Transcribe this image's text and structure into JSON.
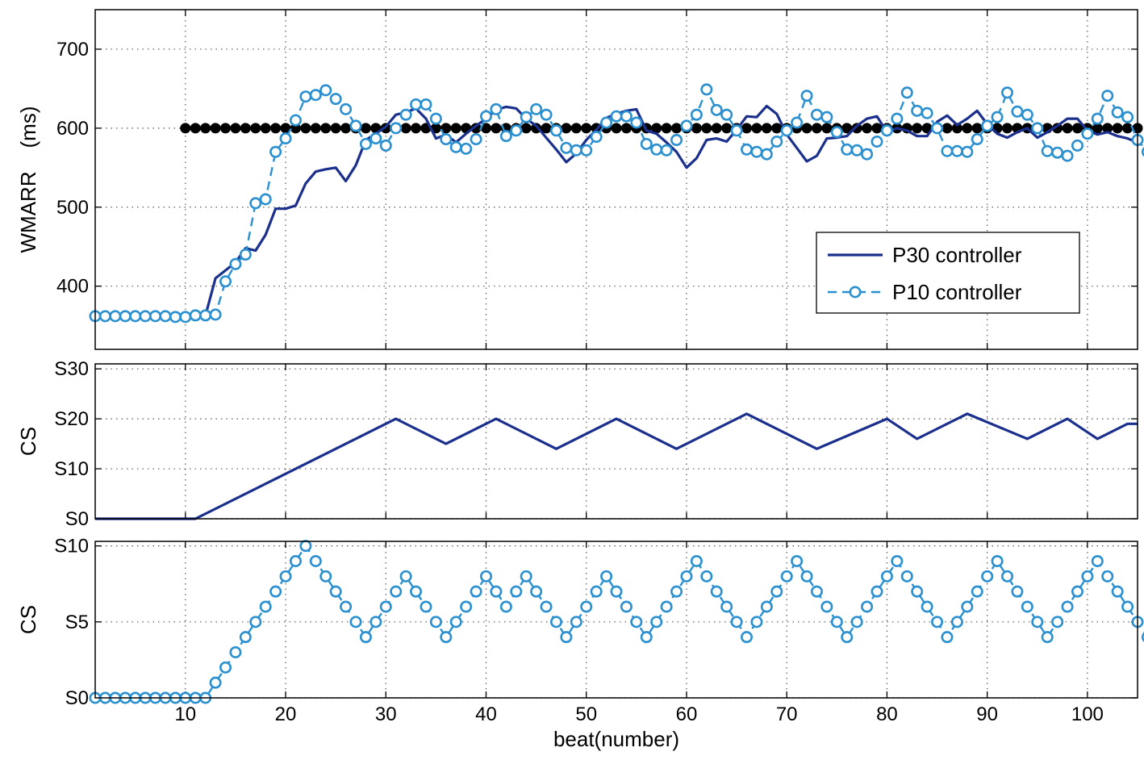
{
  "colors": {
    "p30": "#1b2f8c",
    "p10": "#2b90d0",
    "target": "#000000",
    "grid": "#555555"
  },
  "chart_data": [
    {
      "type": "line",
      "ylabel": "WMARR    (ms)",
      "xlim": [
        1,
        105
      ],
      "ylim": [
        320,
        750
      ],
      "grid": true,
      "legend_position": "middle-right",
      "xticks": [
        10,
        20,
        30,
        40,
        50,
        60,
        70,
        80,
        90,
        100
      ],
      "yticks": [
        {
          "value": 400,
          "label": "400"
        },
        {
          "value": 500,
          "label": "500"
        },
        {
          "value": 600,
          "label": "600"
        },
        {
          "value": 700,
          "label": "700"
        }
      ],
      "target": {
        "x_start": 10,
        "x_end": 105,
        "value": 600
      },
      "series": [
        {
          "name": "P30 controller",
          "style": "solid",
          "x_start": 1,
          "values": [
            363,
            363,
            363,
            363,
            363,
            363,
            363,
            363,
            363,
            363,
            363,
            363,
            410,
            420,
            430,
            448,
            445,
            465,
            498,
            498,
            502,
            530,
            545,
            548,
            550,
            533,
            553,
            585,
            593,
            602,
            617,
            620,
            625,
            612,
            587,
            592,
            582,
            593,
            603,
            612,
            623,
            627,
            625,
            612,
            603,
            588,
            573,
            557,
            568,
            585,
            598,
            613,
            618,
            622,
            624,
            597,
            593,
            582,
            570,
            550,
            562,
            585,
            587,
            583,
            598,
            615,
            614,
            628,
            618,
            592,
            575,
            558,
            565,
            587,
            588,
            590,
            603,
            612,
            615,
            595,
            600,
            597,
            590,
            590,
            608,
            616,
            604,
            612,
            622,
            605,
            593,
            588,
            595,
            600,
            588,
            595,
            603,
            612,
            612,
            597,
            592,
            595,
            590,
            587,
            582
          ]
        },
        {
          "name": "P10 controller",
          "style": "dashed-circle",
          "x_start": 1,
          "values": [
            362,
            362,
            362,
            362,
            362,
            362,
            362,
            362,
            361,
            361,
            363,
            363,
            364,
            406,
            428,
            440,
            505,
            510,
            570,
            587,
            610,
            640,
            642,
            648,
            637,
            624,
            603,
            580,
            587,
            578,
            600,
            617,
            630,
            630,
            612,
            586,
            576,
            574,
            586,
            615,
            624,
            590,
            597,
            614,
            624,
            617,
            597,
            575,
            572,
            572,
            589,
            607,
            615,
            615,
            607,
            580,
            573,
            572,
            585,
            603,
            617,
            649,
            623,
            617,
            597,
            573,
            570,
            567,
            583,
            597,
            607,
            641,
            617,
            614,
            595,
            573,
            572,
            567,
            583,
            597,
            612,
            645,
            622,
            619,
            600,
            571,
            571,
            570,
            586,
            603,
            614,
            645,
            621,
            617,
            600,
            571,
            569,
            565,
            578,
            593,
            612,
            641,
            620,
            614,
            585,
            570
          ]
        }
      ]
    },
    {
      "type": "line",
      "ylabel": "CS",
      "xlim": [
        1,
        105
      ],
      "ylim": [
        0,
        31
      ],
      "grid": true,
      "xticks": [
        10,
        20,
        30,
        40,
        50,
        60,
        70,
        80,
        90,
        100
      ],
      "yticks": [
        {
          "value": 0,
          "label": "S0"
        },
        {
          "value": 10,
          "label": "S10"
        },
        {
          "value": 20,
          "label": "S20"
        },
        {
          "value": 30,
          "label": "S30"
        }
      ],
      "series": [
        {
          "name": "P30 controller",
          "style": "solid",
          "x": [
            1,
            11,
            31,
            36,
            41,
            47,
            53,
            59,
            66,
            73,
            80,
            83,
            88,
            94,
            98,
            101,
            104,
            105
          ],
          "values": [
            0,
            0,
            20,
            15,
            20,
            14,
            20,
            14,
            21,
            14,
            20,
            16,
            21,
            16,
            20,
            16,
            19,
            19
          ]
        }
      ]
    },
    {
      "type": "line",
      "ylabel": "CS",
      "xlabel": "beat(number)",
      "xlim": [
        1,
        105
      ],
      "ylim": [
        0,
        10.3
      ],
      "grid": true,
      "xticks": [
        10,
        20,
        30,
        40,
        50,
        60,
        70,
        80,
        90,
        100
      ],
      "yticks": [
        {
          "value": 0,
          "label": "S0"
        },
        {
          "value": 5,
          "label": "S5"
        },
        {
          "value": 10,
          "label": "S10"
        }
      ],
      "series": [
        {
          "name": "P10 controller",
          "style": "dashed-circle",
          "x_start": 1,
          "values": [
            0,
            0,
            0,
            0,
            0,
            0,
            0,
            0,
            0,
            0,
            0,
            0,
            1,
            2,
            3,
            4,
            5,
            6,
            7,
            8,
            9,
            10,
            9,
            8,
            7,
            6,
            5,
            4,
            5,
            6,
            7,
            8,
            7,
            6,
            5,
            4,
            5,
            6,
            7,
            8,
            7,
            6,
            7,
            8,
            7,
            6,
            5,
            4,
            5,
            6,
            7,
            8,
            7,
            6,
            5,
            4,
            5,
            6,
            7,
            8,
            9,
            8,
            7,
            6,
            5,
            4,
            5,
            6,
            7,
            8,
            9,
            8,
            7,
            6,
            5,
            4,
            5,
            6,
            7,
            8,
            9,
            8,
            7,
            6,
            5,
            4,
            5,
            6,
            7,
            8,
            9,
            8,
            7,
            6,
            5,
            4,
            5,
            6,
            7,
            8,
            9,
            8,
            7,
            6,
            5,
            4
          ]
        }
      ]
    }
  ]
}
